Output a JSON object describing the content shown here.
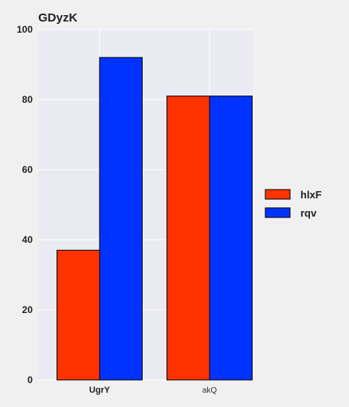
{
  "chart_data": {
    "type": "bar",
    "title": "GDyzK",
    "categories": [
      "UgrY",
      "akQ"
    ],
    "series": [
      {
        "name": "hlxF",
        "values": [
          37,
          81
        ],
        "color": "#ff3300"
      },
      {
        "name": "rqv",
        "values": [
          92,
          81
        ],
        "color": "#0033ff"
      }
    ],
    "yticks": [
      0,
      20,
      40,
      60,
      80,
      100
    ],
    "ylim": [
      0,
      100
    ],
    "xlabel": "",
    "ylabel": "",
    "grid": true,
    "legend_position": "right",
    "colors": {
      "plot_background": "#eaeaf2",
      "page_background": "#f0f0f0",
      "grid": "#ffffff",
      "bar_edge": "#000000"
    }
  }
}
